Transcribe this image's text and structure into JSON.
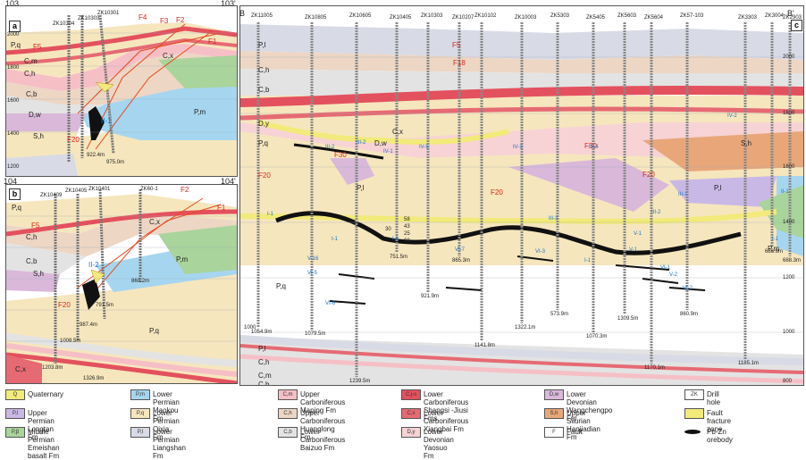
{
  "panel_a": {
    "letter": "a",
    "section_left": "103",
    "section_right": "103'",
    "elevations": [
      "2000",
      "1800",
      "1600",
      "1400",
      "1200",
      "1000"
    ],
    "holes": [
      "ZK10304",
      "ZK10303",
      "ZK10301"
    ],
    "layers": [
      "P,q",
      "P,l",
      "C,m",
      "C,h",
      "C,b",
      "C,j-s",
      "C,x",
      "D,w",
      "D,y",
      "S,h",
      "P,m",
      "P,l",
      "C,m",
      "C,h",
      "C,b"
    ],
    "faults": [
      "F1",
      "F2",
      "F3",
      "F4",
      "F5",
      "F20"
    ],
    "orebodies": [
      "II-1"
    ],
    "depths": [
      "922.4m",
      "975.0m",
      "961.5m"
    ]
  },
  "panel_b": {
    "letter": "b",
    "section_left": "104",
    "section_right": "104'",
    "elevations": [
      "2000",
      "1800",
      "1600",
      "1400",
      "1200",
      "1000",
      "800"
    ],
    "holes": [
      "ZK10409",
      "ZK10405",
      "ZK10401",
      "ZK10403",
      "ZK60-1"
    ],
    "layers": [
      "P,q",
      "P,l",
      "C,m",
      "C,h",
      "C,b",
      "C,j-s",
      "C,x",
      "D,w",
      "D,y",
      "S,h",
      "P,m",
      "P,l",
      "P,q",
      "C,x",
      "C,j-s",
      "C,h",
      "C,m",
      "C,b"
    ],
    "faults": [
      "F1",
      "F2",
      "F5",
      "F20",
      "F30"
    ],
    "orebodies": [
      "II-1",
      "II-2",
      "II-5"
    ],
    "depths": [
      "860.2m",
      "791.5m",
      "987.4m",
      "1008.5m",
      "1203.8m",
      "1326.9m"
    ]
  },
  "panel_c": {
    "letter": "c",
    "section_left": "B",
    "section_right": "B'",
    "elevations_right": [
      "2000",
      "1800",
      "1600",
      "1400",
      "1200",
      "1000",
      "800"
    ],
    "elevations_left": [
      "1000"
    ],
    "holes": [
      "ZK11005",
      "ZK10805",
      "ZK10605",
      "ZK10405",
      "ZK10303",
      "ZK10207",
      "ZK10102",
      "ZK10003",
      "ZK5303",
      "ZK5405",
      "ZK5603",
      "ZK5604",
      "ZK57-103",
      "ZK3303",
      "ZK3004",
      "ZK2903"
    ],
    "layers": [
      "P,l",
      "C,h",
      "C,b",
      "P,q",
      "D,y",
      "C,x",
      "S,h",
      "D,w",
      "P,l",
      "P,q",
      "P,l",
      "C,h",
      "C,m",
      "C,b",
      "P,m",
      "P,l"
    ],
    "faults": [
      "F5",
      "F18",
      "F20",
      "F20",
      "F20",
      "F30",
      "F30"
    ],
    "orebodies": [
      "III-2",
      "III-2",
      "IV-5",
      "IV-1",
      "IV-3",
      "IV-4",
      "IV-2",
      "III-3",
      "III-1",
      "III-2",
      "II-1",
      "I-1",
      "I-1",
      "I-3",
      "V-1",
      "V-2",
      "V-1",
      "V-16",
      "VI-5",
      "VI-6",
      "VI-7",
      "VI-3",
      "VI-1",
      "VI-2",
      "I-1",
      "I-1"
    ],
    "depths": [
      "1054.9m",
      "1079.5m",
      "1239.5m",
      "751.5m",
      "921.9m",
      "865.3m",
      "1141.8m",
      "1322.1m",
      "573.9m",
      "1070.3m",
      "1309.5m",
      "1170.1m",
      "860.9m",
      "1185.1m",
      "686.9m",
      "688.3m"
    ],
    "core_labels": [
      "58",
      "43",
      "25",
      "08",
      "30"
    ]
  },
  "legend": [
    {
      "code": "Q",
      "label": "Quaternary",
      "color": "#f2ea7a"
    },
    {
      "code": "P,l",
      "label": "Upper Permian Longtan Fm",
      "color": "#c9b8e6"
    },
    {
      "code": "P,β",
      "label": "Middle Permian Emeishan basalt Fm",
      "color": "#a9d49b"
    },
    {
      "code": "P,m",
      "label": "Lower Permian Maokou Fm",
      "color": "#a6d6ef"
    },
    {
      "code": "P,q",
      "label": "Lower Permian Qixia Fm",
      "color": "#f6e6bd"
    },
    {
      "code": "P,l",
      "label": "Lower Permian Liangshan Fm",
      "color": "#d8dae6"
    },
    {
      "code": "C,m",
      "label": "Upper Carboniferous Maping Fm",
      "color": "#f6bfc6"
    },
    {
      "code": "C,h",
      "label": "Upper Carboniferous Huanglong Fm",
      "color": "#edd6c4"
    },
    {
      "code": "C,b",
      "label": "Lower Carboniferous Baizuo Fm",
      "color": "#e3e3e3"
    },
    {
      "code": "C,j-s",
      "label": "Lower Carboniferous Shangsi -Jiusi Fms",
      "color": "#e3515e"
    },
    {
      "code": "C,x",
      "label": "Lower Carboniferous Xiangbai Fm",
      "color": "#e66a73"
    },
    {
      "code": "D,y",
      "label": "Lower Devonian Yaosuo Fm",
      "color": "#f7d3d5"
    },
    {
      "code": "D,w",
      "label": "Lower Devonian Wangchengpo Fm",
      "color": "#d9b8da"
    },
    {
      "code": "S,h",
      "label": "Upper Silurian Hanjiadian Fm",
      "color": "#e9a779"
    },
    {
      "code": "F",
      "label": "Fault",
      "color": "#ffffff"
    },
    {
      "code": "ZK",
      "label": "Drill hole",
      "color": "#ffffff"
    },
    {
      "code": "",
      "label": "Fault fracture zone",
      "color": "#f2ea7a"
    },
    {
      "code": "",
      "label": "Pb-Zn orebody",
      "color": "#111111"
    }
  ]
}
